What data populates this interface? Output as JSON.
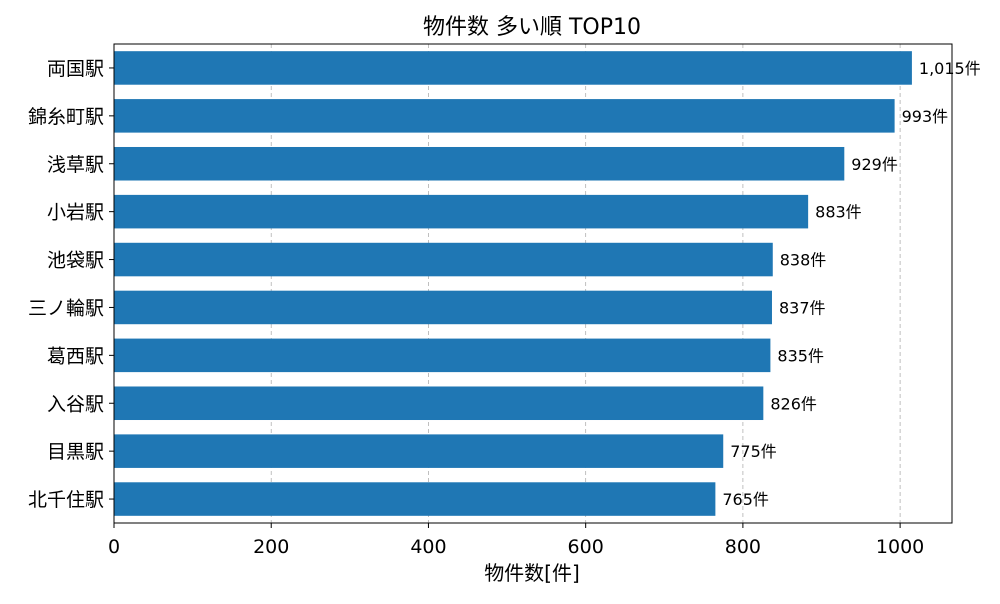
{
  "chart_data": {
    "type": "bar",
    "orientation": "horizontal",
    "title": "物件数 多い順 TOP10",
    "xlabel": "物件数[件]",
    "ylabel": "",
    "categories": [
      "両国駅",
      "錦糸町駅",
      "浅草駅",
      "小岩駅",
      "池袋駅",
      "三ノ輪駅",
      "葛西駅",
      "入谷駅",
      "目黒駅",
      "北千住駅"
    ],
    "values": [
      1015,
      993,
      929,
      883,
      838,
      837,
      835,
      826,
      775,
      765
    ],
    "data_labels": [
      "1,015件",
      "993件",
      "929件",
      "883件",
      "838件",
      "837件",
      "835件",
      "826件",
      "775件",
      "765件"
    ],
    "xlim": [
      0,
      1066
    ],
    "xticks": [
      0,
      200,
      400,
      600,
      800,
      1000
    ],
    "xtick_labels": [
      "0",
      "200",
      "400",
      "600",
      "800",
      "1000"
    ],
    "grid": "vertical dashed",
    "bar_color": "#1f77b4"
  }
}
